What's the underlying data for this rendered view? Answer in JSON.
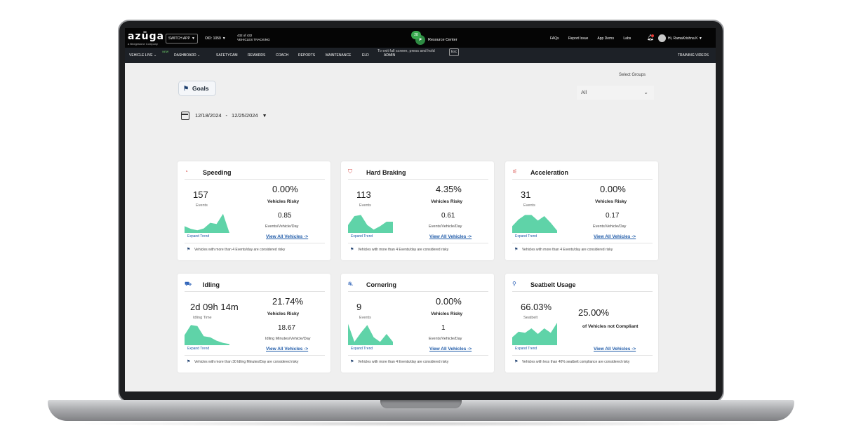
{
  "topbar": {
    "logo": "azūga",
    "logo_sub": "a Bridgestone Company",
    "switch_app": "SWITCH APP",
    "oid": "OID: 1059",
    "tracking_line1": "432 of 432",
    "tracking_line2": "VEHICLES TRACKING",
    "resource_center_count": "28",
    "resource_center_label": "Resource Center",
    "links": [
      "FAQs",
      "Report Issue",
      "App Demo",
      "Labs"
    ],
    "user": "Hi, RamaKrishna K"
  },
  "nav": {
    "items": [
      "VEHICLE LIVE",
      "DASHBOARD",
      "SAFETYCAM",
      "REWARDS",
      "COACH",
      "REPORTS",
      "MAINTENANCE",
      "ELD",
      "ADMIN"
    ],
    "new_tag": "NEW",
    "esc_hint": "To exit full screen, press and hold",
    "esc_key": "Esc",
    "training": "TRAINING VIDEOS"
  },
  "page": {
    "goals": "Goals",
    "select_label": "Select Groups",
    "select_value": "All",
    "date_start": "12/18/2024",
    "date_sep": "-",
    "date_end": "12/25/2024"
  },
  "cards": [
    {
      "title": "Speeding",
      "icon": "gauge-icon",
      "value": "157",
      "value_label": "Events",
      "pct": "0.00%",
      "pct_label": "Vehicles Risky",
      "rate": "0.85",
      "rate_label": "Events/Vehicle/Day",
      "link": "View All Vehicles ->",
      "expand": "Expand Trend",
      "footer": "Vehicles with more than 4 Events/day are considered risky",
      "trend": [
        0.3,
        0.18,
        0.12,
        0.2,
        0.45,
        0.4,
        0.85,
        0.0
      ]
    },
    {
      "title": "Hard Braking",
      "icon": "brake-icon",
      "value": "113",
      "value_label": "Events",
      "pct": "4.35%",
      "pct_label": "Vehicles Risky",
      "rate": "0.61",
      "rate_label": "Events/Vehicle/Day",
      "link": "View All Vehicles ->",
      "expand": "Expand Trend",
      "footer": "Vehicles with more than 4 Events/day are considered risky",
      "trend": [
        0.35,
        0.75,
        0.8,
        0.35,
        0.15,
        0.3,
        0.5,
        0.5
      ]
    },
    {
      "title": "Acceleration",
      "icon": "acceleration-icon",
      "value": "31",
      "value_label": "Events",
      "pct": "0.00%",
      "pct_label": "Vehicles Risky",
      "rate": "0.17",
      "rate_label": "Events/Vehicle/Day",
      "link": "View All Vehicles ->",
      "expand": "Expand Trend",
      "footer": "Vehicles with more than 4 Events/day are considered risky",
      "trend": [
        0.3,
        0.6,
        0.8,
        0.8,
        0.55,
        0.75,
        0.45,
        0.1
      ]
    },
    {
      "title": "Idling",
      "icon": "idling-icon",
      "value": "2d 09h 14m",
      "value_label": "Idling Time",
      "pct": "21.74%",
      "pct_label": "Vehicles Risky",
      "rate": "18.67",
      "rate_label": "Idling Minutes/Vehicle/Day",
      "link": "View All Vehicles ->",
      "expand": "Expand Trend",
      "footer": "Vehicles with more than 30 Idling Minutes/Day are considered risky",
      "trend": [
        0.45,
        0.9,
        0.85,
        0.4,
        0.35,
        0.2,
        0.1,
        0.05
      ]
    },
    {
      "title": "Cornering",
      "icon": "cornering-icon",
      "value": "9",
      "value_label": "Events",
      "pct": "0.00%",
      "pct_label": "Vehicles Risky",
      "rate": "1",
      "rate_label": "Events/Vehicle/Day",
      "link": "View All Vehicles ->",
      "expand": "Expand Trend",
      "footer": "Vehicles with more than 4 Events/day are considered risky",
      "trend": [
        0.95,
        0.15,
        0.55,
        0.9,
        0.35,
        0.15,
        0.5,
        0.15
      ]
    },
    {
      "title": "Seatbelt Usage",
      "icon": "seatbelt-icon",
      "value": "66.03%",
      "value_label": "Seatbelt",
      "pct": "25.00%",
      "pct_label": "of Vehicles not Compliant",
      "rate": "",
      "rate_label": "",
      "link": "View All Vehicles ->",
      "expand": "Expand Trend",
      "footer": "Vehicles with less than 40% seatbelt compliance are considered risky",
      "trend": [
        0.35,
        0.6,
        0.55,
        0.75,
        0.5,
        0.75,
        0.55,
        1.0
      ]
    }
  ],
  "colors": {
    "trend_fill": "#5fd3a8",
    "link": "#1e5aa8",
    "topbar": "#050505",
    "navbar": "#1d2127"
  }
}
